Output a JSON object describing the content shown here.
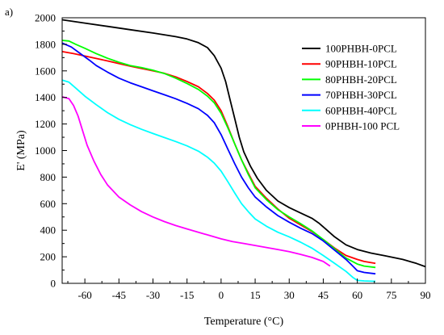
{
  "panel_label": "a)",
  "chart_data": {
    "type": "line",
    "xlabel": "Temperature (°C)",
    "ylabel": "E' (MPa)",
    "xlim": [
      -70,
      90
    ],
    "ylim": [
      0,
      2000
    ],
    "xticks": [
      -60,
      -45,
      -30,
      -15,
      0,
      15,
      30,
      45,
      60,
      75,
      90
    ],
    "yticks": [
      0,
      200,
      400,
      600,
      800,
      1000,
      1200,
      1400,
      1600,
      1800,
      2000
    ],
    "legend_position": "top-right",
    "grid": false,
    "series": [
      {
        "name": "100PHBH-0PCL",
        "color": "#000000",
        "points": [
          [
            -70,
            1985
          ],
          [
            -60,
            1960
          ],
          [
            -50,
            1935
          ],
          [
            -40,
            1910
          ],
          [
            -30,
            1885
          ],
          [
            -20,
            1858
          ],
          [
            -15,
            1840
          ],
          [
            -10,
            1812
          ],
          [
            -6,
            1775
          ],
          [
            -3,
            1715
          ],
          [
            0,
            1620
          ],
          [
            2,
            1520
          ],
          [
            4,
            1380
          ],
          [
            6,
            1240
          ],
          [
            8,
            1100
          ],
          [
            10,
            990
          ],
          [
            13,
            880
          ],
          [
            16,
            790
          ],
          [
            20,
            700
          ],
          [
            25,
            620
          ],
          [
            30,
            570
          ],
          [
            35,
            530
          ],
          [
            40,
            490
          ],
          [
            43,
            455
          ],
          [
            46,
            410
          ],
          [
            50,
            350
          ],
          [
            55,
            290
          ],
          [
            60,
            255
          ],
          [
            66,
            228
          ],
          [
            72,
            208
          ],
          [
            80,
            180
          ],
          [
            86,
            150
          ],
          [
            90,
            125
          ]
        ]
      },
      {
        "name": "90PHBH-10PCL",
        "color": "#ff0000",
        "points": [
          [
            -70,
            1745
          ],
          [
            -65,
            1730
          ],
          [
            -60,
            1712
          ],
          [
            -50,
            1675
          ],
          [
            -45,
            1655
          ],
          [
            -40,
            1635
          ],
          [
            -30,
            1600
          ],
          [
            -25,
            1582
          ],
          [
            -20,
            1555
          ],
          [
            -15,
            1520
          ],
          [
            -10,
            1480
          ],
          [
            -6,
            1430
          ],
          [
            -3,
            1380
          ],
          [
            0,
            1300
          ],
          [
            3,
            1180
          ],
          [
            6,
            1050
          ],
          [
            9,
            930
          ],
          [
            12,
            830
          ],
          [
            15,
            730
          ],
          [
            20,
            640
          ],
          [
            25,
            560
          ],
          [
            30,
            490
          ],
          [
            35,
            440
          ],
          [
            40,
            390
          ],
          [
            45,
            330
          ],
          [
            50,
            265
          ],
          [
            55,
            210
          ],
          [
            60,
            180
          ],
          [
            63,
            165
          ],
          [
            68,
            150
          ]
        ]
      },
      {
        "name": "80PHBH-20PCL",
        "color": "#00ff00",
        "points": [
          [
            -70,
            1830
          ],
          [
            -67,
            1825
          ],
          [
            -64,
            1800
          ],
          [
            -60,
            1770
          ],
          [
            -55,
            1730
          ],
          [
            -50,
            1695
          ],
          [
            -45,
            1665
          ],
          [
            -40,
            1640
          ],
          [
            -35,
            1625
          ],
          [
            -30,
            1605
          ],
          [
            -25,
            1580
          ],
          [
            -20,
            1545
          ],
          [
            -15,
            1505
          ],
          [
            -10,
            1460
          ],
          [
            -6,
            1410
          ],
          [
            -3,
            1360
          ],
          [
            0,
            1280
          ],
          [
            3,
            1170
          ],
          [
            6,
            1050
          ],
          [
            9,
            930
          ],
          [
            12,
            820
          ],
          [
            15,
            720
          ],
          [
            20,
            630
          ],
          [
            25,
            555
          ],
          [
            30,
            500
          ],
          [
            35,
            450
          ],
          [
            40,
            395
          ],
          [
            45,
            330
          ],
          [
            50,
            260
          ],
          [
            55,
            190
          ],
          [
            60,
            145
          ],
          [
            63,
            130
          ],
          [
            68,
            120
          ]
        ]
      },
      {
        "name": "70PHBH-30PCL",
        "color": "#0000ff",
        "points": [
          [
            -70,
            1810
          ],
          [
            -66,
            1780
          ],
          [
            -62,
            1730
          ],
          [
            -58,
            1680
          ],
          [
            -55,
            1640
          ],
          [
            -50,
            1590
          ],
          [
            -45,
            1545
          ],
          [
            -40,
            1510
          ],
          [
            -35,
            1480
          ],
          [
            -30,
            1450
          ],
          [
            -25,
            1420
          ],
          [
            -20,
            1390
          ],
          [
            -15,
            1355
          ],
          [
            -10,
            1315
          ],
          [
            -6,
            1265
          ],
          [
            -3,
            1210
          ],
          [
            0,
            1120
          ],
          [
            3,
            1010
          ],
          [
            6,
            900
          ],
          [
            9,
            800
          ],
          [
            12,
            720
          ],
          [
            15,
            650
          ],
          [
            20,
            575
          ],
          [
            25,
            510
          ],
          [
            30,
            460
          ],
          [
            35,
            415
          ],
          [
            40,
            375
          ],
          [
            45,
            320
          ],
          [
            50,
            250
          ],
          [
            55,
            180
          ],
          [
            58,
            130
          ],
          [
            60,
            95
          ],
          [
            63,
            82
          ],
          [
            68,
            72
          ]
        ]
      },
      {
        "name": "60PHBH-40PCL",
        "color": "#00ffff",
        "points": [
          [
            -70,
            1530
          ],
          [
            -67,
            1515
          ],
          [
            -64,
            1470
          ],
          [
            -60,
            1410
          ],
          [
            -55,
            1345
          ],
          [
            -50,
            1285
          ],
          [
            -45,
            1235
          ],
          [
            -40,
            1195
          ],
          [
            -35,
            1160
          ],
          [
            -30,
            1128
          ],
          [
            -25,
            1098
          ],
          [
            -20,
            1068
          ],
          [
            -15,
            1035
          ],
          [
            -10,
            995
          ],
          [
            -6,
            950
          ],
          [
            -3,
            905
          ],
          [
            0,
            845
          ],
          [
            3,
            765
          ],
          [
            6,
            680
          ],
          [
            9,
            600
          ],
          [
            12,
            540
          ],
          [
            15,
            485
          ],
          [
            20,
            430
          ],
          [
            25,
            385
          ],
          [
            30,
            350
          ],
          [
            35,
            310
          ],
          [
            40,
            265
          ],
          [
            45,
            210
          ],
          [
            50,
            150
          ],
          [
            55,
            90
          ],
          [
            58,
            45
          ],
          [
            60,
            22
          ],
          [
            63,
            18
          ],
          [
            68,
            15
          ]
        ]
      },
      {
        "name": "0PHBH-100 PCL",
        "color": "#ff00ff",
        "points": [
          [
            -70,
            1405
          ],
          [
            -67,
            1390
          ],
          [
            -65,
            1340
          ],
          [
            -63,
            1260
          ],
          [
            -61,
            1150
          ],
          [
            -59,
            1040
          ],
          [
            -56,
            920
          ],
          [
            -53,
            820
          ],
          [
            -50,
            740
          ],
          [
            -45,
            650
          ],
          [
            -40,
            590
          ],
          [
            -35,
            540
          ],
          [
            -30,
            500
          ],
          [
            -25,
            465
          ],
          [
            -20,
            435
          ],
          [
            -15,
            410
          ],
          [
            -10,
            385
          ],
          [
            -5,
            360
          ],
          [
            0,
            335
          ],
          [
            5,
            315
          ],
          [
            10,
            300
          ],
          [
            15,
            285
          ],
          [
            20,
            270
          ],
          [
            25,
            255
          ],
          [
            30,
            238
          ],
          [
            35,
            218
          ],
          [
            40,
            195
          ],
          [
            45,
            165
          ],
          [
            48,
            130
          ]
        ]
      }
    ]
  }
}
